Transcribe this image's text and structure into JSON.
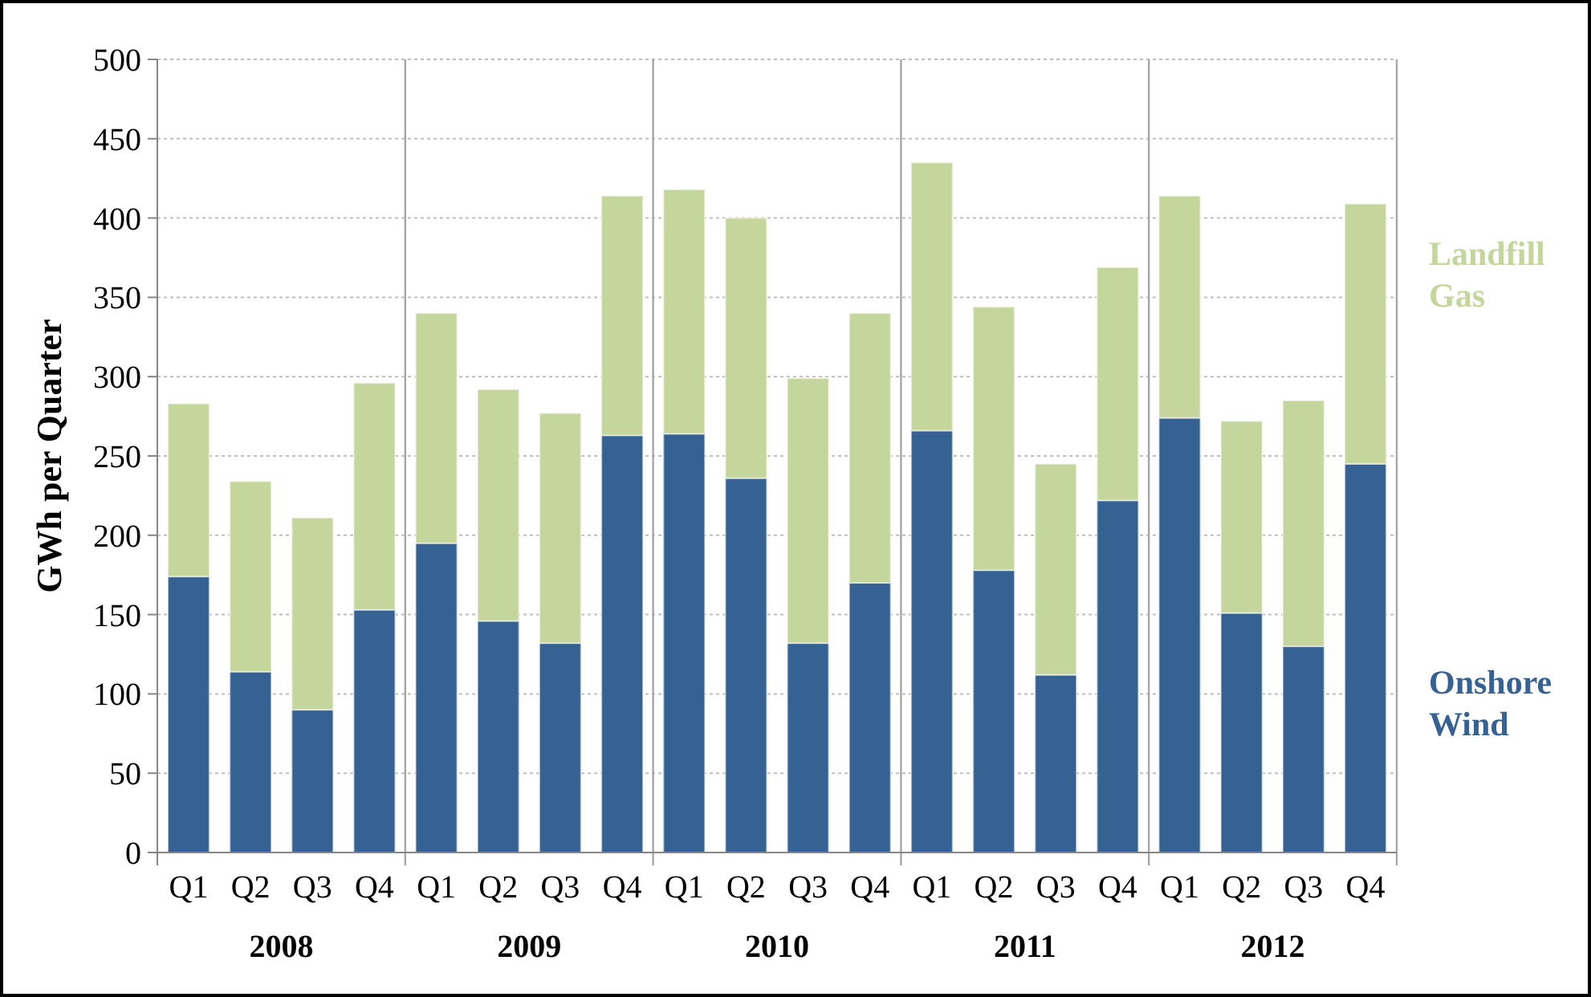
{
  "chart_data": {
    "type": "bar",
    "stacked": true,
    "ylabel": "GWh per Quarter",
    "categories": [
      "Q1",
      "Q2",
      "Q3",
      "Q4",
      "Q1",
      "Q2",
      "Q3",
      "Q4",
      "Q1",
      "Q2",
      "Q3",
      "Q4",
      "Q1",
      "Q2",
      "Q3",
      "Q4",
      "Q1",
      "Q2",
      "Q3",
      "Q4"
    ],
    "series": [
      {
        "name": "Onshore Wind",
        "color": "#356193",
        "values": [
          174,
          114,
          90,
          153,
          195,
          146,
          132,
          263,
          264,
          236,
          132,
          170,
          266,
          178,
          112,
          222,
          274,
          151,
          130,
          245
        ]
      },
      {
        "name": "Landfill Gas",
        "color": "#c4d69c",
        "values": [
          109,
          120,
          121,
          143,
          145,
          146,
          145,
          151,
          154,
          164,
          167,
          170,
          169,
          166,
          133,
          147,
          140,
          121,
          155,
          164
        ]
      }
    ],
    "ylim": [
      0,
      500
    ],
    "yticks": [
      0,
      50,
      100,
      150,
      200,
      250,
      300,
      350,
      400,
      450,
      500
    ],
    "grid": "y",
    "legend": "right",
    "annotations": [
      "2008",
      "2009",
      "2010",
      "2011",
      "2012"
    ]
  }
}
